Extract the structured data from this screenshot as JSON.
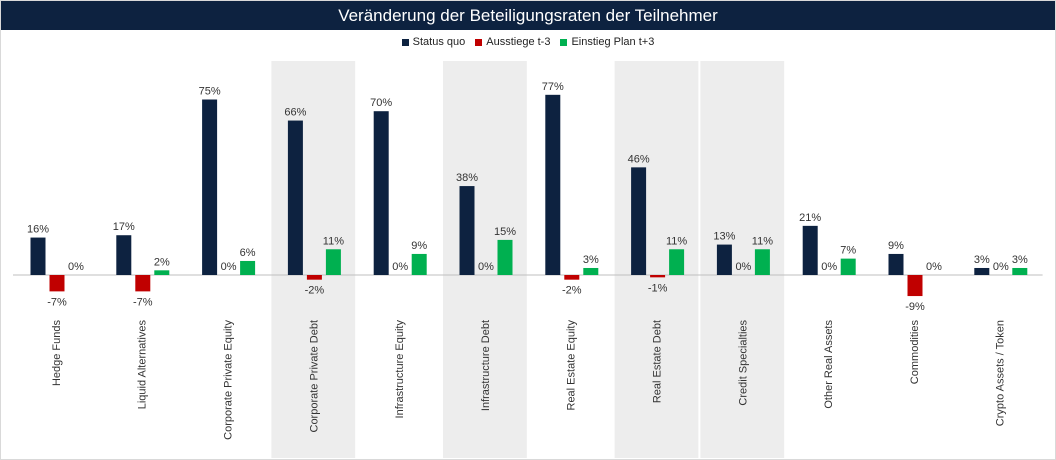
{
  "chart_data": {
    "type": "bar",
    "title": "Veränderung der Beteiligungsraten der Teilnehmer",
    "categories": [
      "Hedge Funds",
      "Liquid Alternatives",
      "Corporate Private Equity",
      "Corporate Private Debt",
      "Infrastructure Equity",
      "Infrastructure Debt",
      "Real Estate Equity",
      "Real Estate Debt",
      "Credit Specialties",
      "Other Real Assets",
      "Commodities",
      "Crypto Assets / Token"
    ],
    "highlighted_categories": [
      "Corporate Private Debt",
      "Infrastructure Debt",
      "Real Estate Debt",
      "Credit Specialties"
    ],
    "series": [
      {
        "name": "Status quo",
        "color": "#0d2240",
        "values": [
          16,
          17,
          75,
          66,
          70,
          38,
          77,
          46,
          13,
          21,
          9,
          3
        ]
      },
      {
        "name": "Ausstiege t-3",
        "color": "#c00000",
        "values": [
          -7,
          -7,
          0,
          -2,
          0,
          0,
          -2,
          -1,
          0,
          0,
          -9,
          0
        ]
      },
      {
        "name": "Einstieg Plan t+3",
        "color": "#00b050",
        "values": [
          0,
          2,
          6,
          11,
          9,
          15,
          3,
          11,
          11,
          7,
          0,
          3
        ]
      }
    ],
    "unit": "%",
    "legend_position": "top-center",
    "grid": false
  }
}
